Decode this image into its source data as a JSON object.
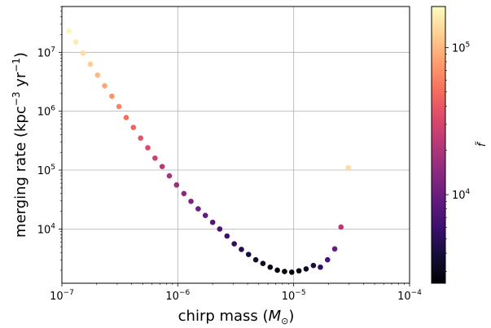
{
  "chart_data": {
    "type": "scatter",
    "title": "",
    "xlabel": "chirp mass (",
    "xlabel_math": "M",
    "xlabel_sub": "⊙",
    "xlabel_end": ")",
    "ylabel": "merging rate (kpc",
    "ylabel_sup1": "−3",
    "ylabel_mid": " yr",
    "ylabel_sup2": "−1",
    "ylabel_end": ")",
    "xscale": "log",
    "yscale": "log",
    "xlim": [
      1e-07,
      0.0001
    ],
    "ylim": [
      1200,
      60000000
    ],
    "grid": true,
    "x_ticks": [
      {
        "value": 1e-07,
        "base": "10",
        "exp": "−7"
      },
      {
        "value": 1e-06,
        "base": "10",
        "exp": "−6"
      },
      {
        "value": 1e-05,
        "base": "10",
        "exp": "−5"
      },
      {
        "value": 0.0001,
        "base": "10",
        "exp": "−4"
      }
    ],
    "y_ticks": [
      {
        "value": 10000,
        "base": "10",
        "exp": "4"
      },
      {
        "value": 100000,
        "base": "10",
        "exp": "5"
      },
      {
        "value": 1000000,
        "base": "10",
        "exp": "6"
      },
      {
        "value": 10000000,
        "base": "10",
        "exp": "7"
      }
    ],
    "colorbar": {
      "label": "f̃",
      "scale": "log",
      "colormap": "magma",
      "range": [
        2500,
        190000
      ],
      "ticks": [
        {
          "value": 10000,
          "base": "10",
          "exp": "4"
        },
        {
          "value": 100000,
          "base": "10",
          "exp": "5"
        }
      ]
    },
    "points": [
      {
        "x": 1.15e-07,
        "y": 23000000,
        "c": 180000
      },
      {
        "x": 1.32e-07,
        "y": 15000000,
        "c": 160000
      },
      {
        "x": 1.52e-07,
        "y": 9700000,
        "c": 140000
      },
      {
        "x": 1.76e-07,
        "y": 6300000,
        "c": 120000
      },
      {
        "x": 2.03e-07,
        "y": 4100000,
        "c": 100000
      },
      {
        "x": 2.34e-07,
        "y": 2700000,
        "c": 85000
      },
      {
        "x": 2.7e-07,
        "y": 1800000,
        "c": 72000
      },
      {
        "x": 3.11e-07,
        "y": 1200000,
        "c": 62000
      },
      {
        "x": 3.59e-07,
        "y": 780000,
        "c": 53000
      },
      {
        "x": 4.14e-07,
        "y": 530000,
        "c": 45000
      },
      {
        "x": 4.78e-07,
        "y": 350000,
        "c": 38000
      },
      {
        "x": 5.51e-07,
        "y": 240000,
        "c": 32000
      },
      {
        "x": 6.36e-07,
        "y": 160000,
        "c": 27000
      },
      {
        "x": 7.34e-07,
        "y": 115000,
        "c": 23000
      },
      {
        "x": 8.46e-07,
        "y": 80000,
        "c": 19000
      },
      {
        "x": 9.76e-07,
        "y": 56000,
        "c": 16500
      },
      {
        "x": 1.13e-06,
        "y": 40000,
        "c": 14000
      },
      {
        "x": 1.3e-06,
        "y": 29500,
        "c": 12000
      },
      {
        "x": 1.5e-06,
        "y": 22000,
        "c": 10500
      },
      {
        "x": 1.73e-06,
        "y": 17000,
        "c": 9000
      },
      {
        "x": 2e-06,
        "y": 13000,
        "c": 7800
      },
      {
        "x": 2.3e-06,
        "y": 10000,
        "c": 6800
      },
      {
        "x": 2.66e-06,
        "y": 7600,
        "c": 6000
      },
      {
        "x": 3.07e-06,
        "y": 5600,
        "c": 5300
      },
      {
        "x": 3.54e-06,
        "y": 4500,
        "c": 4700
      },
      {
        "x": 4.08e-06,
        "y": 3700,
        "c": 4100
      },
      {
        "x": 4.71e-06,
        "y": 3000,
        "c": 3600
      },
      {
        "x": 5.43e-06,
        "y": 2600,
        "c": 3200
      },
      {
        "x": 6.27e-06,
        "y": 2250,
        "c": 2900
      },
      {
        "x": 7.23e-06,
        "y": 2000,
        "c": 2700
      },
      {
        "x": 8.34e-06,
        "y": 1900,
        "c": 2550
      },
      {
        "x": 9.62e-06,
        "y": 1850,
        "c": 2500
      },
      {
        "x": 1.11e-05,
        "y": 1950,
        "c": 2700
      },
      {
        "x": 1.28e-05,
        "y": 2100,
        "c": 3200
      },
      {
        "x": 1.48e-05,
        "y": 2400,
        "c": 4000
      },
      {
        "x": 1.7e-05,
        "y": 2250,
        "c": 5200
      },
      {
        "x": 1.96e-05,
        "y": 3000,
        "c": 7000
      },
      {
        "x": 2.26e-05,
        "y": 4600,
        "c": 9500
      },
      {
        "x": 2.56e-05,
        "y": 10800,
        "c": 22000
      },
      {
        "x": 2.96e-05,
        "y": 110000,
        "c": 140000
      }
    ]
  }
}
